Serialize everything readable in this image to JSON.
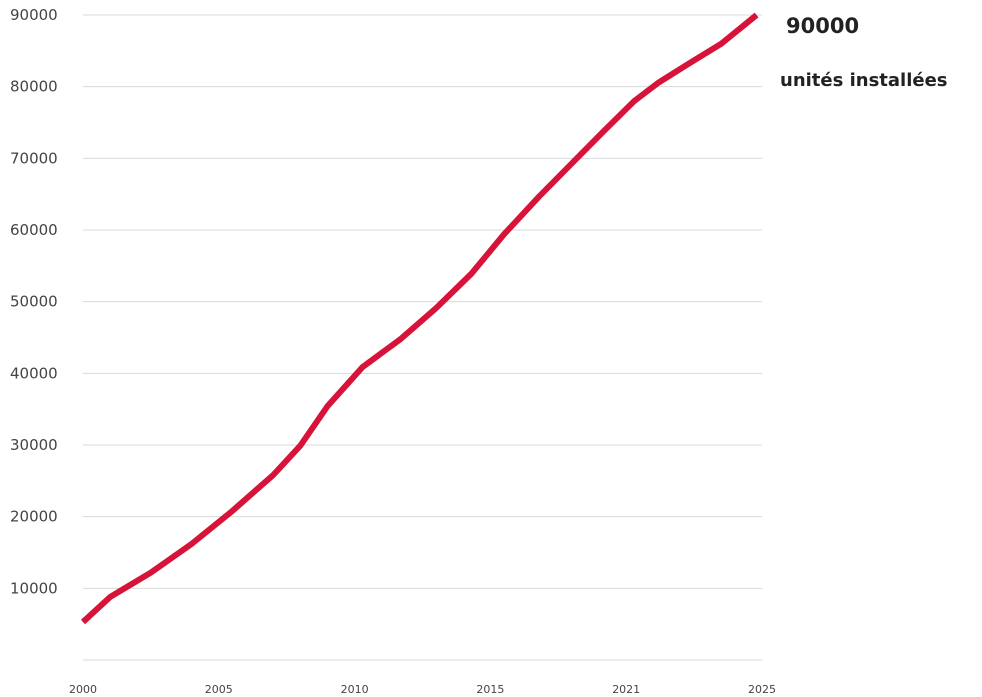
{
  "chart_data": {
    "type": "line",
    "title": "",
    "xlabel": "",
    "ylabel": "",
    "x_ticks": [
      "2000",
      "2005",
      "2010",
      "2015",
      "2021",
      "2025"
    ],
    "y_ticks": [
      "10000",
      "20000",
      "30000",
      "40000",
      "50000",
      "60000",
      "70000",
      "80000",
      "90000"
    ],
    "ylim": [
      0,
      90000
    ],
    "xlim": [
      2000,
      2025
    ],
    "grid": true,
    "legend": "none",
    "series": [
      {
        "color": "#d8133a",
        "x": [
          2000,
          2001,
          2002.5,
          2004,
          2005.5,
          2007,
          2008,
          2009,
          2010.3,
          2011.7,
          2013,
          2014.3,
          2015.5,
          2016.8,
          2018,
          2019.2,
          2020.3,
          2021.2,
          2022.3,
          2023.5,
          2024.8
        ],
        "y": [
          5300,
          8800,
          12200,
          16200,
          20800,
          25800,
          29900,
          35400,
          40900,
          44800,
          49100,
          53900,
          59400,
          64700,
          69300,
          73900,
          78000,
          80600,
          83200,
          86000,
          90000
        ]
      }
    ],
    "callout": {
      "value": "90000",
      "label": "unités installées"
    }
  }
}
